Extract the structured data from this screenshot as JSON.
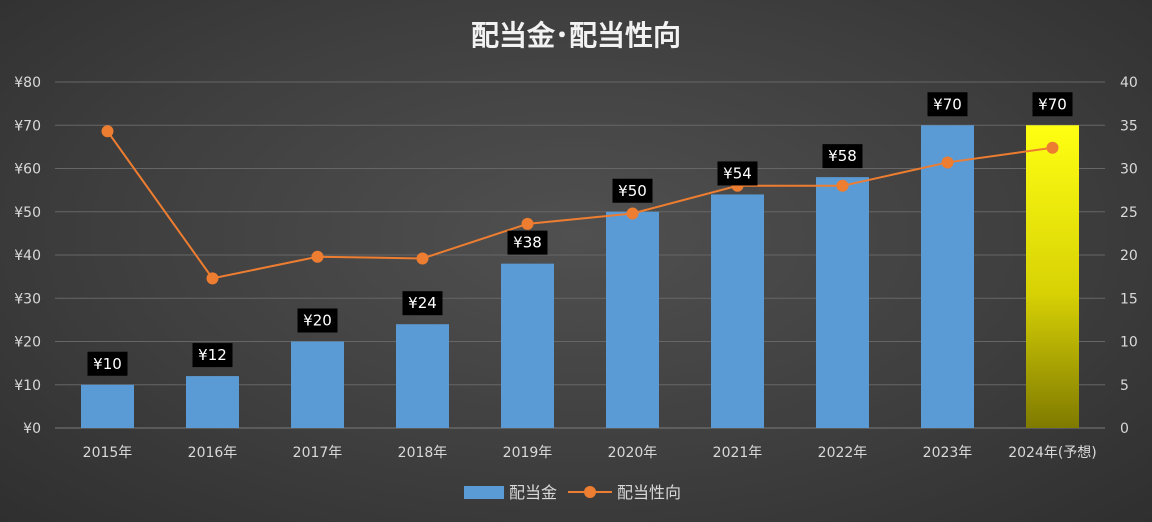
{
  "chart_data": {
    "type": "bar",
    "title": "配当金･配当性向",
    "categories": [
      "2015年",
      "2016年",
      "2017年",
      "2018年",
      "2019年",
      "2020年",
      "2021年",
      "2022年",
      "2023年",
      "2024年(予想)"
    ],
    "series": [
      {
        "name": "配当金",
        "type": "bar",
        "axis": "left",
        "values": [
          10,
          12,
          20,
          24,
          38,
          50,
          54,
          58,
          70,
          70
        ],
        "data_labels": [
          "¥10",
          "¥12",
          "¥20",
          "¥24",
          "¥38",
          "¥50",
          "¥54",
          "¥58",
          "¥70",
          "¥70"
        ],
        "color": "#5b9bd5",
        "highlight_last_color": "#f5f50a"
      },
      {
        "name": "配当性向",
        "type": "line",
        "axis": "right",
        "values": [
          34.3,
          17.3,
          19.8,
          19.6,
          23.6,
          24.8,
          28.0,
          28.0,
          30.7,
          32.4
        ],
        "color": "#ed7d31"
      }
    ],
    "y_left": {
      "ylim": [
        0,
        80
      ],
      "ticks": [
        0,
        10,
        20,
        30,
        40,
        50,
        60,
        70,
        80
      ],
      "tick_labels": [
        "¥0",
        "¥10",
        "¥20",
        "¥30",
        "¥40",
        "¥50",
        "¥60",
        "¥70",
        "¥80"
      ]
    },
    "y_right": {
      "ylim": [
        0,
        40
      ],
      "ticks": [
        0,
        5,
        10,
        15,
        20,
        25,
        30,
        35,
        40
      ],
      "tick_labels": [
        "0",
        "5",
        "10",
        "15",
        "20",
        "25",
        "30",
        "35",
        "40"
      ]
    },
    "grid": true,
    "legend": "bottom"
  }
}
